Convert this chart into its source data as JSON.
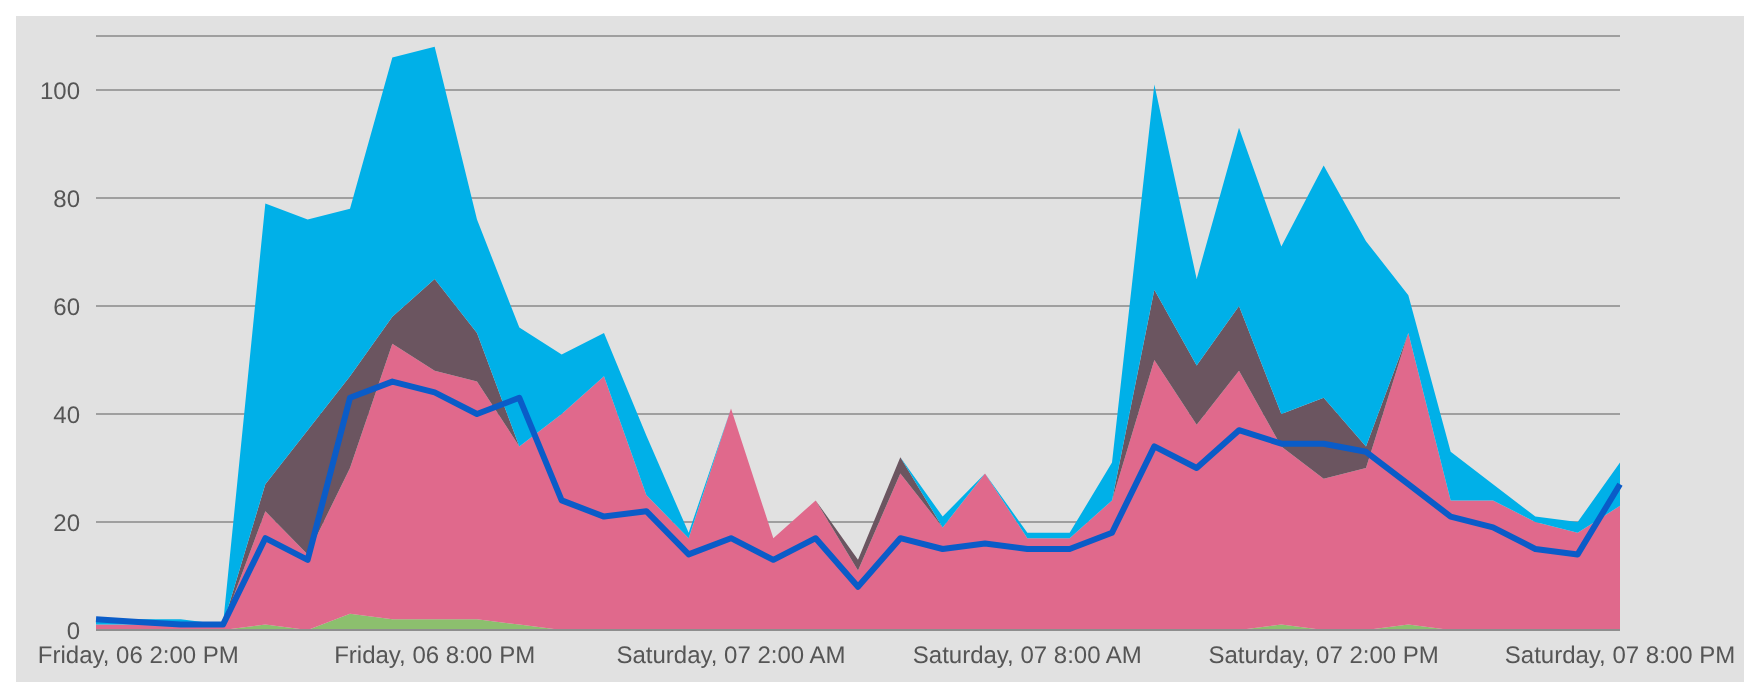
{
  "chart_data": {
    "type": "area",
    "stacked": true,
    "grid": "y",
    "categories": [
      null,
      "Friday, 06 2:00 PM",
      null,
      null,
      null,
      null,
      null,
      null,
      "Friday, 06 8:00 PM",
      null,
      null,
      null,
      null,
      null,
      null,
      "Saturday, 07 2:00 AM",
      null,
      null,
      null,
      null,
      null,
      null,
      "Saturday, 07 8:00 AM",
      null,
      null,
      null,
      null,
      null,
      null,
      "Saturday, 07 2:00 PM",
      null,
      null,
      null,
      null,
      null,
      null,
      "Saturday, 07 8:00 PM"
    ],
    "ylim": [
      0,
      110
    ],
    "yticks": [
      0,
      20,
      40,
      60,
      80,
      100
    ],
    "series": [
      {
        "color": "#8cbf6e",
        "values": [
          0,
          0,
          0,
          0,
          1,
          0,
          3,
          2,
          2,
          2,
          1,
          0,
          0,
          0,
          0,
          0,
          0,
          0,
          0,
          0,
          0,
          0,
          0,
          0,
          0,
          0,
          0,
          0,
          1,
          0,
          0,
          1,
          0,
          0,
          0,
          0,
          0
        ]
      },
      {
        "color": "#e0698c",
        "values": [
          1,
          1,
          1,
          1,
          21,
          14,
          27,
          51,
          46,
          44,
          33,
          40,
          47,
          25,
          17,
          41,
          17,
          24,
          11,
          29,
          19,
          29,
          17,
          17,
          24,
          50,
          38,
          48,
          33,
          28,
          30,
          54,
          24,
          24,
          20,
          18,
          23
        ]
      },
      {
        "color": "#6b5560",
        "values": [
          0,
          0,
          0,
          0,
          5,
          23,
          17,
          5,
          17,
          9,
          0,
          0,
          0,
          0,
          0,
          0,
          0,
          0,
          2,
          3,
          0,
          0,
          0,
          0,
          0,
          13,
          11,
          12,
          6,
          15,
          4,
          0,
          0,
          0,
          0,
          0,
          0
        ]
      },
      {
        "color": "#00b0e8",
        "values": [
          1,
          1,
          1,
          0,
          52,
          39,
          31,
          48,
          43,
          21,
          22,
          11,
          8,
          11,
          1,
          0,
          0,
          0,
          0,
          0,
          2,
          0,
          1,
          1,
          7,
          38,
          16,
          33,
          31,
          43,
          38,
          7,
          9,
          3,
          1,
          2,
          8
        ]
      },
      {
        "type": "line",
        "color": "#0a5cc8",
        "values": [
          2,
          1.5,
          1,
          1,
          17,
          13,
          43,
          46,
          44,
          40,
          43,
          24,
          21,
          22,
          14,
          17,
          13,
          17,
          8,
          17,
          15,
          16,
          15,
          15,
          18,
          34,
          30,
          37,
          34.5,
          34.5,
          33,
          27,
          21,
          19,
          15,
          14,
          27
        ]
      }
    ]
  }
}
